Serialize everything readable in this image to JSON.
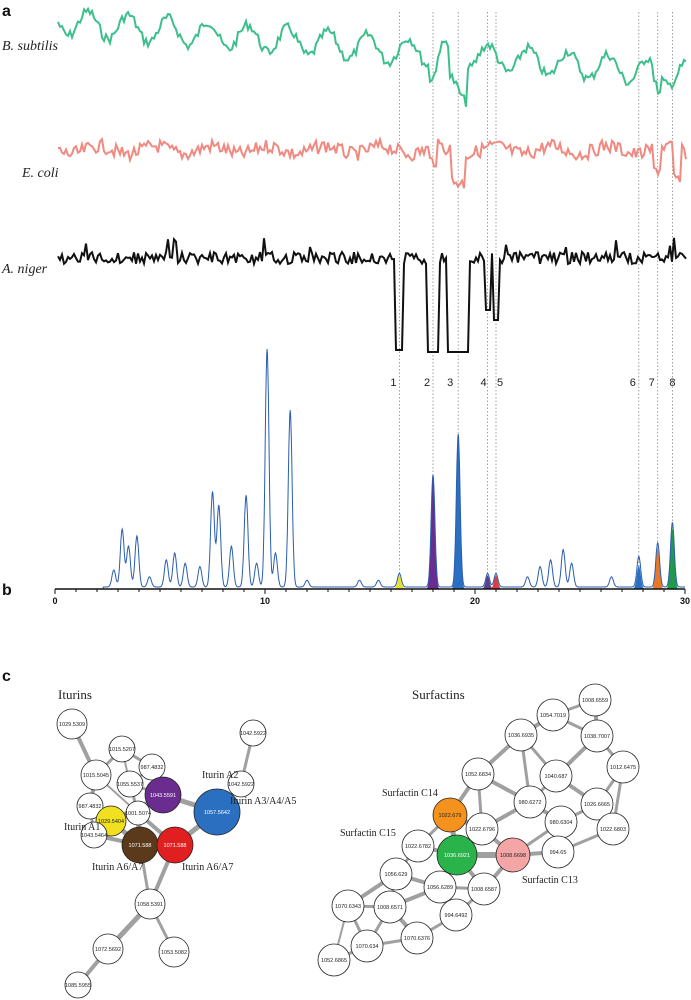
{
  "panels": {
    "a": "a",
    "b": "b",
    "c": "c"
  },
  "organisms": [
    {
      "name": "B. subtilis",
      "color": "#3dbf8c"
    },
    {
      "name": "E. coli",
      "color": "#f08a80"
    },
    {
      "name": "A. niger",
      "color": "#111111"
    }
  ],
  "peak_markers": [
    {
      "label": "1",
      "x": 16.4
    },
    {
      "label": "2",
      "x": 18.0
    },
    {
      "label": "3",
      "x": 19.2
    },
    {
      "label": "4",
      "x": 20.6
    },
    {
      "label": "5",
      "x": 21.0
    },
    {
      "label": "6",
      "x": 27.8
    },
    {
      "label": "7",
      "x": 28.7
    },
    {
      "label": "8",
      "x": 29.4
    }
  ],
  "chart_data": {
    "type": "line",
    "xlim": [
      0,
      30
    ],
    "x_ticks": [
      "0",
      "10",
      "20",
      "30"
    ],
    "chromatogram_color": "#2a5db0",
    "peaks": [
      {
        "rt": 2.8,
        "h": 0.05
      },
      {
        "rt": 3.2,
        "h": 0.17
      },
      {
        "rt": 3.5,
        "h": 0.12
      },
      {
        "rt": 3.9,
        "h": 0.15
      },
      {
        "rt": 4.5,
        "h": 0.03
      },
      {
        "rt": 5.3,
        "h": 0.08
      },
      {
        "rt": 5.7,
        "h": 0.1
      },
      {
        "rt": 6.2,
        "h": 0.07
      },
      {
        "rt": 6.9,
        "h": 0.06
      },
      {
        "rt": 7.5,
        "h": 0.28
      },
      {
        "rt": 7.8,
        "h": 0.24
      },
      {
        "rt": 8.4,
        "h": 0.12
      },
      {
        "rt": 9.1,
        "h": 0.27
      },
      {
        "rt": 9.6,
        "h": 0.07
      },
      {
        "rt": 10.1,
        "h": 0.7
      },
      {
        "rt": 10.5,
        "h": 0.1
      },
      {
        "rt": 11.2,
        "h": 0.52
      },
      {
        "rt": 12.0,
        "h": 0.02
      },
      {
        "rt": 14.5,
        "h": 0.02
      },
      {
        "rt": 15.4,
        "h": 0.02
      },
      {
        "rt": 16.4,
        "h": 0.04
      },
      {
        "rt": 18.0,
        "h": 0.33
      },
      {
        "rt": 19.2,
        "h": 0.45
      },
      {
        "rt": 20.6,
        "h": 0.04
      },
      {
        "rt": 21.0,
        "h": 0.04
      },
      {
        "rt": 22.5,
        "h": 0.03
      },
      {
        "rt": 23.1,
        "h": 0.06
      },
      {
        "rt": 23.6,
        "h": 0.08
      },
      {
        "rt": 24.2,
        "h": 0.11
      },
      {
        "rt": 24.6,
        "h": 0.07
      },
      {
        "rt": 26.5,
        "h": 0.03
      },
      {
        "rt": 27.8,
        "h": 0.09
      },
      {
        "rt": 28.7,
        "h": 0.13
      },
      {
        "rt": 29.4,
        "h": 0.19
      }
    ],
    "filled_peaks": [
      {
        "rt": 16.4,
        "h": 0.04,
        "color": "#e8e030"
      },
      {
        "rt": 18.0,
        "h": 0.33,
        "color": "#6a2d8f"
      },
      {
        "rt": 19.2,
        "h": 0.45,
        "color": "#2a6fc0"
      },
      {
        "rt": 20.6,
        "h": 0.04,
        "color": "#5a3f8c"
      },
      {
        "rt": 21.0,
        "h": 0.04,
        "color": "#d84040"
      },
      {
        "rt": 27.8,
        "h": 0.07,
        "color": "#2a6fc0"
      },
      {
        "rt": 28.7,
        "h": 0.12,
        "color": "#e8772a"
      },
      {
        "rt": 29.4,
        "h": 0.18,
        "color": "#1f9a4a"
      }
    ]
  },
  "networks": {
    "iturins": {
      "title": "Iturins",
      "nodes": [
        {
          "id": "i1",
          "label": "1029.5309",
          "color": "#ffffff"
        },
        {
          "id": "i2",
          "label": "1015.5207",
          "color": "#ffffff"
        },
        {
          "id": "i3",
          "label": "987.4832",
          "color": "#ffffff"
        },
        {
          "id": "i4",
          "label": "1015.5045",
          "color": "#ffffff"
        },
        {
          "id": "i5",
          "label": "1055.5537",
          "color": "#ffffff"
        },
        {
          "id": "i6",
          "label": "1043.5591",
          "color": "#6a2d8f"
        },
        {
          "id": "i7",
          "label": "987.4832",
          "color": "#ffffff"
        },
        {
          "id": "i8",
          "label": "1029.5404",
          "color": "#f0e020"
        },
        {
          "id": "i9",
          "label": "1001.5074",
          "color": "#ffffff"
        },
        {
          "id": "i10",
          "label": "1057.5642",
          "color": "#2a6fc0"
        },
        {
          "id": "i11",
          "label": "1043.5464",
          "color": "#ffffff"
        },
        {
          "id": "i12",
          "label": "1071.588",
          "color": "#5a3a1a"
        },
        {
          "id": "i13",
          "label": "1071.588",
          "color": "#e02020"
        },
        {
          "id": "i14",
          "label": "1042.5922",
          "color": "#ffffff"
        },
        {
          "id": "i15",
          "label": "1042.5922",
          "color": "#ffffff"
        },
        {
          "id": "i16",
          "label": "1058.5391",
          "color": "#ffffff"
        },
        {
          "id": "i17",
          "label": "1072.5692",
          "color": "#ffffff"
        },
        {
          "id": "i18",
          "label": "1053.5082",
          "color": "#ffffff"
        },
        {
          "id": "i19",
          "label": "1085.5955",
          "color": "#ffffff"
        }
      ],
      "compound_labels": [
        {
          "text": "Iturin A2"
        },
        {
          "text": "Iturin A3/A4/A5"
        },
        {
          "text": "Iturin A1"
        },
        {
          "text": "Iturin A6/A7"
        },
        {
          "text": "Iturin A6/A7"
        }
      ]
    },
    "surfactins": {
      "title": "Surfactins",
      "nodes": [
        {
          "id": "s1",
          "label": "1008.6559",
          "color": "#ffffff"
        },
        {
          "id": "s2",
          "label": "1054.7019",
          "color": "#ffffff"
        },
        {
          "id": "s3",
          "label": "1036.6935",
          "color": "#ffffff"
        },
        {
          "id": "s4",
          "label": "1038.7007",
          "color": "#ffffff"
        },
        {
          "id": "s5",
          "label": "1012.6475",
          "color": "#ffffff"
        },
        {
          "id": "s6",
          "label": "1052.6834",
          "color": "#ffffff"
        },
        {
          "id": "s7",
          "label": "1040.687",
          "color": "#ffffff"
        },
        {
          "id": "s8",
          "label": "1026.6665",
          "color": "#ffffff"
        },
        {
          "id": "s9",
          "label": "1022.6803",
          "color": "#ffffff"
        },
        {
          "id": "s10",
          "label": "980.6272",
          "color": "#ffffff"
        },
        {
          "id": "s11",
          "label": "1022.679",
          "color": "#f5921e"
        },
        {
          "id": "s12",
          "label": "980.6304",
          "color": "#ffffff"
        },
        {
          "id": "s13",
          "label": "1022.6796",
          "color": "#ffffff"
        },
        {
          "id": "s14",
          "label": "1022.6782",
          "color": "#ffffff"
        },
        {
          "id": "s15",
          "label": "994.65",
          "color": "#ffffff"
        },
        {
          "id": "s16",
          "label": "1036.6921",
          "color": "#2ab34a"
        },
        {
          "id": "s17",
          "label": "1008.6698",
          "color": "#f4a6a6"
        },
        {
          "id": "s18",
          "label": "1056.629",
          "color": "#ffffff"
        },
        {
          "id": "s19",
          "label": "1056.6289",
          "color": "#ffffff"
        },
        {
          "id": "s20",
          "label": "1008.6587",
          "color": "#ffffff"
        },
        {
          "id": "s21",
          "label": "1070.6343",
          "color": "#ffffff"
        },
        {
          "id": "s22",
          "label": "1008.6571",
          "color": "#ffffff"
        },
        {
          "id": "s23",
          "label": "994.6492",
          "color": "#ffffff"
        },
        {
          "id": "s24",
          "label": "1070.634",
          "color": "#ffffff"
        },
        {
          "id": "s25",
          "label": "1070.6376",
          "color": "#ffffff"
        },
        {
          "id": "s26",
          "label": "1052.6865",
          "color": "#ffffff"
        }
      ],
      "compound_labels": [
        {
          "text": "Surfactin C14"
        },
        {
          "text": "Surfactin C15"
        },
        {
          "text": "Surfactin C13"
        }
      ]
    }
  }
}
